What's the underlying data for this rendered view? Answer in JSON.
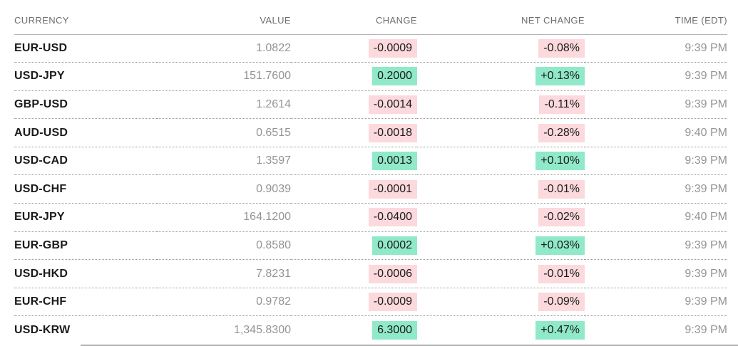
{
  "table": {
    "columns": [
      {
        "key": "currency",
        "label": "CURRENCY"
      },
      {
        "key": "value",
        "label": "VALUE"
      },
      {
        "key": "change",
        "label": "CHANGE"
      },
      {
        "key": "net_change",
        "label": "NET CHANGE"
      },
      {
        "key": "time",
        "label": "TIME (EDT)"
      }
    ],
    "rows": [
      {
        "currency": "EUR-USD",
        "value": "1.0822",
        "change": "-0.0009",
        "net_change": "-0.08%",
        "time": "9:39 PM",
        "direction": "down"
      },
      {
        "currency": "USD-JPY",
        "value": "151.7600",
        "change": "0.2000",
        "net_change": "+0.13%",
        "time": "9:39 PM",
        "direction": "up"
      },
      {
        "currency": "GBP-USD",
        "value": "1.2614",
        "change": "-0.0014",
        "net_change": "-0.11%",
        "time": "9:39 PM",
        "direction": "down"
      },
      {
        "currency": "AUD-USD",
        "value": "0.6515",
        "change": "-0.0018",
        "net_change": "-0.28%",
        "time": "9:40 PM",
        "direction": "down"
      },
      {
        "currency": "USD-CAD",
        "value": "1.3597",
        "change": "0.0013",
        "net_change": "+0.10%",
        "time": "9:39 PM",
        "direction": "up"
      },
      {
        "currency": "USD-CHF",
        "value": "0.9039",
        "change": "-0.0001",
        "net_change": "-0.01%",
        "time": "9:39 PM",
        "direction": "down"
      },
      {
        "currency": "EUR-JPY",
        "value": "164.1200",
        "change": "-0.0400",
        "net_change": "-0.02%",
        "time": "9:40 PM",
        "direction": "down"
      },
      {
        "currency": "EUR-GBP",
        "value": "0.8580",
        "change": "0.0002",
        "net_change": "+0.03%",
        "time": "9:39 PM",
        "direction": "up"
      },
      {
        "currency": "USD-HKD",
        "value": "7.8231",
        "change": "-0.0006",
        "net_change": "-0.01%",
        "time": "9:39 PM",
        "direction": "down"
      },
      {
        "currency": "EUR-CHF",
        "value": "0.9782",
        "change": "-0.0009",
        "net_change": "-0.09%",
        "time": "9:39 PM",
        "direction": "down"
      },
      {
        "currency": "USD-KRW",
        "value": "1,345.8300",
        "change": "6.3000",
        "net_change": "+0.47%",
        "time": "9:39 PM",
        "direction": "up"
      }
    ]
  },
  "colors": {
    "positive_bg": "#90e9c9",
    "negative_bg": "#fcd9dc",
    "currency_text": "#1b1b1b",
    "muted_text": "#949494",
    "header_text": "#6d6d6d"
  }
}
